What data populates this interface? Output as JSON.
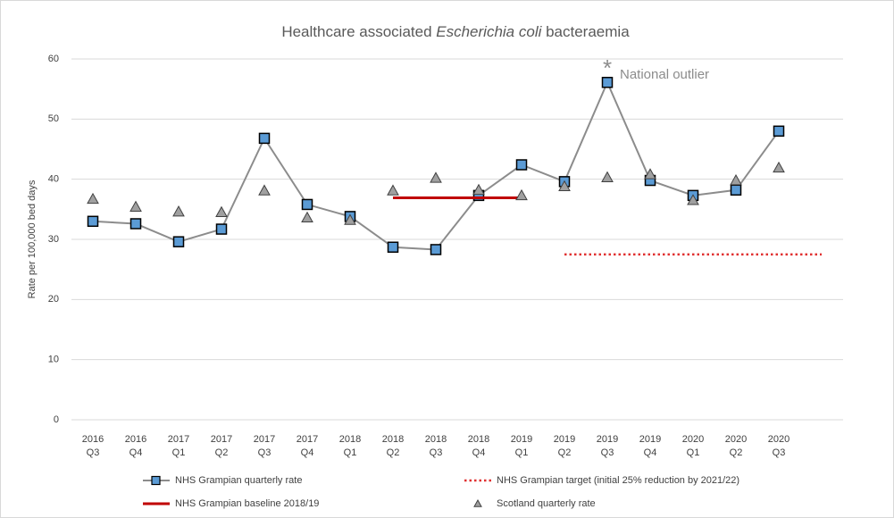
{
  "chart_data": {
    "type": "line",
    "title": [
      "Healthcare associated ",
      "Escherichia coli",
      " bacteraemia"
    ],
    "y_label": "Rate per 100,000 bed days",
    "categories": [
      [
        "2016",
        "Q3"
      ],
      [
        "2016",
        "Q4"
      ],
      [
        "2017",
        "Q1"
      ],
      [
        "2017",
        "Q2"
      ],
      [
        "2017",
        "Q3"
      ],
      [
        "2017",
        "Q4"
      ],
      [
        "2018",
        "Q1"
      ],
      [
        "2018",
        "Q2"
      ],
      [
        "2018",
        "Q3"
      ],
      [
        "2018",
        "Q4"
      ],
      [
        "2019",
        "Q1"
      ],
      [
        "2019",
        "Q2"
      ],
      [
        "2019",
        "Q3"
      ],
      [
        "2019",
        "Q4"
      ],
      [
        "2020",
        "Q1"
      ],
      [
        "2020",
        "Q2"
      ],
      [
        "2020",
        "Q3"
      ],
      null
    ],
    "series": [
      {
        "name": "NHS Grampian quarterly rate",
        "style": "line-square",
        "color": "#8c8c8c",
        "marker_color": "#5b9bd5",
        "values": [
          33.0,
          32.6,
          29.6,
          31.7,
          46.8,
          35.8,
          33.8,
          28.7,
          28.3,
          37.3,
          42.4,
          39.6,
          56.1,
          39.8,
          37.3,
          38.2,
          48.0,
          null
        ]
      },
      {
        "name": "NHS Grampian target (initial 25% reduction by 2021/22)",
        "style": "dotted",
        "color": "#e03030",
        "values": [
          null,
          null,
          null,
          null,
          null,
          null,
          null,
          null,
          null,
          null,
          null,
          27.5,
          27.5,
          27.5,
          27.5,
          27.5,
          27.5,
          27.5
        ]
      },
      {
        "name": "NHS Grampian baseline 2018/19",
        "style": "solid",
        "color": "#c00000",
        "values": [
          null,
          null,
          null,
          null,
          null,
          null,
          null,
          36.9,
          36.9,
          36.9,
          36.9,
          null,
          null,
          null,
          null,
          null,
          null,
          null
        ]
      },
      {
        "name": "Scotland quarterly rate",
        "style": "triangle",
        "color": "#a0a0a0",
        "values": [
          36.7,
          35.4,
          34.6,
          34.5,
          38.1,
          33.6,
          33.2,
          38.1,
          40.2,
          38.2,
          37.3,
          38.8,
          40.3,
          40.8,
          36.5,
          39.8,
          41.9,
          null
        ]
      }
    ],
    "annotation": {
      "marker": "*",
      "text": "National outlier",
      "category_index": 12,
      "series_index": 0
    },
    "ylim": [
      0,
      60
    ],
    "yticks": [
      0,
      10,
      20,
      30,
      40,
      50,
      60
    ],
    "grid": true,
    "legend": "bottom"
  }
}
